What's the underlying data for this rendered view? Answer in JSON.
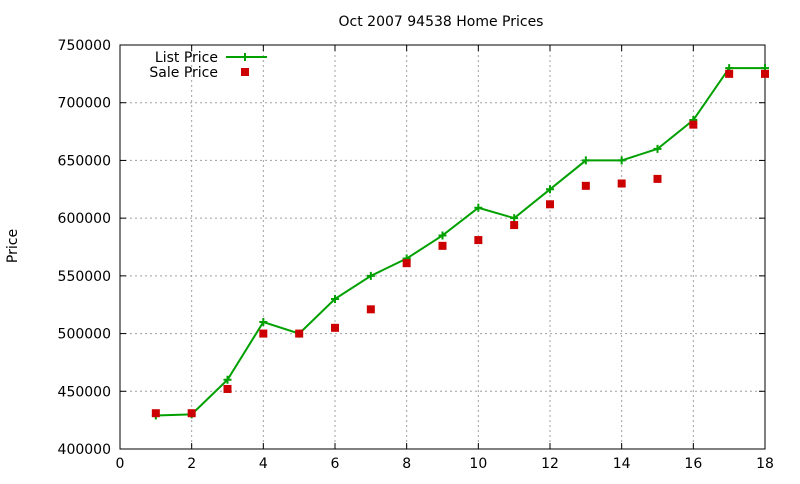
{
  "chart_data": {
    "type": "line",
    "title": "Oct 2007 94538 Home Prices",
    "xlabel": "",
    "ylabel": "Price",
    "xlim": [
      0,
      18
    ],
    "ylim": [
      400000,
      750000
    ],
    "x_ticks": [
      0,
      2,
      4,
      6,
      8,
      10,
      12,
      14,
      16,
      18
    ],
    "y_ticks": [
      400000,
      450000,
      500000,
      550000,
      600000,
      650000,
      700000,
      750000
    ],
    "grid": true,
    "legend_position": "top-left",
    "series": [
      {
        "name": "List Price",
        "style": "lines+points",
        "marker": "plus",
        "color": "#00a000",
        "x": [
          1,
          2,
          3,
          4,
          5,
          6,
          7,
          8,
          9,
          10,
          11,
          12,
          13,
          14,
          15,
          16,
          17,
          18
        ],
        "y": [
          429000,
          430000,
          460000,
          510000,
          500000,
          530000,
          550000,
          565000,
          585000,
          609000,
          600000,
          625000,
          650000,
          650000,
          660000,
          685000,
          730000,
          730000
        ]
      },
      {
        "name": "Sale Price",
        "style": "points",
        "marker": "square",
        "color": "#cc0000",
        "x": [
          1,
          2,
          3,
          4,
          5,
          6,
          7,
          8,
          9,
          10,
          11,
          12,
          13,
          14,
          15,
          16,
          17,
          18
        ],
        "y": [
          431000,
          431000,
          452000,
          500000,
          500000,
          505000,
          521000,
          561000,
          576000,
          581000,
          594000,
          612000,
          628000,
          630000,
          634000,
          681000,
          725000,
          725000
        ]
      }
    ]
  }
}
